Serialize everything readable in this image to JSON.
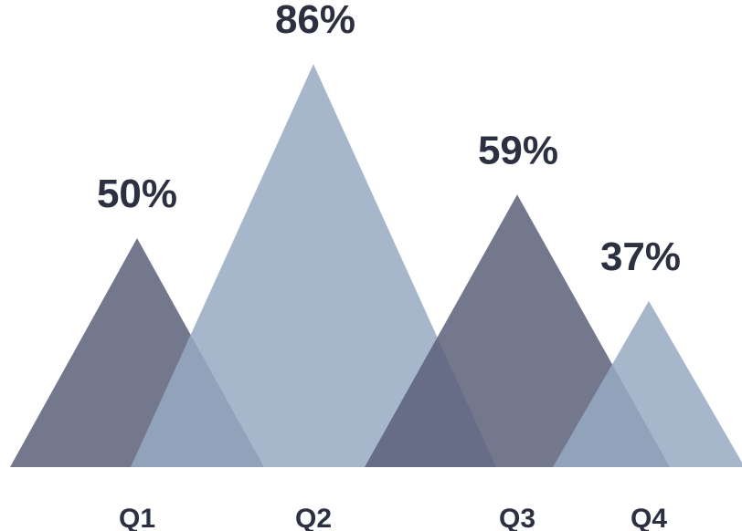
{
  "chart_data": {
    "type": "bar",
    "title": "",
    "xlabel": "",
    "ylabel": "",
    "categories": [
      "Q1",
      "Q2",
      "Q3",
      "Q4"
    ],
    "values": [
      50,
      86,
      59,
      37
    ],
    "value_labels": [
      "50%",
      "86%",
      "59%",
      "37%"
    ],
    "unit": "%",
    "ylim": [
      0,
      100
    ],
    "grid": false,
    "legend": "none",
    "colors": [
      "#5c6079",
      "#97aac3",
      "#5c6079",
      "#97aac3"
    ],
    "mark_shape": "triangle"
  }
}
